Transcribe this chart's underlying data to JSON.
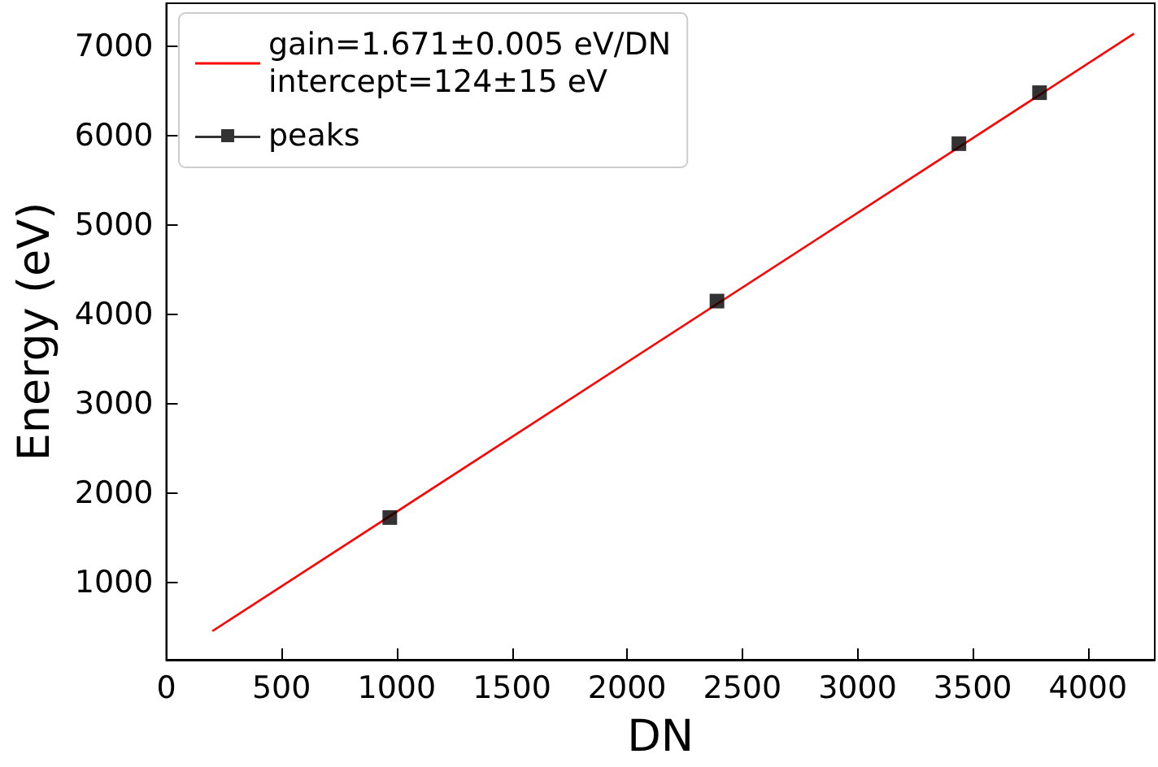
{
  "chart_data": {
    "type": "scatter",
    "xlabel": "DN",
    "ylabel": "Energy (eV)",
    "xlim": [
      0,
      4290
    ],
    "xticks": [
      0,
      500,
      1000,
      1500,
      2000,
      2500,
      3000,
      3500,
      4000
    ],
    "ylim": [
      140,
      7480
    ],
    "yticks": [
      1000,
      2000,
      3000,
      4000,
      5000,
      6000,
      7000
    ],
    "grid": false,
    "legend": "top left",
    "marker": "square",
    "series": [
      {
        "name": "gain=1.671±0.005 eV/DN\nintercept=124±15 eV",
        "type": "line",
        "color": "#ff0000",
        "marker": "none",
        "x": [
          200,
          4200
        ],
        "values": [
          460,
          7140
        ]
      },
      {
        "name": "peaks",
        "color": "#000000",
        "x": [
          970,
          2390,
          3440,
          3790
        ],
        "values": [
          1730,
          4150,
          5910,
          6480
        ]
      }
    ]
  }
}
